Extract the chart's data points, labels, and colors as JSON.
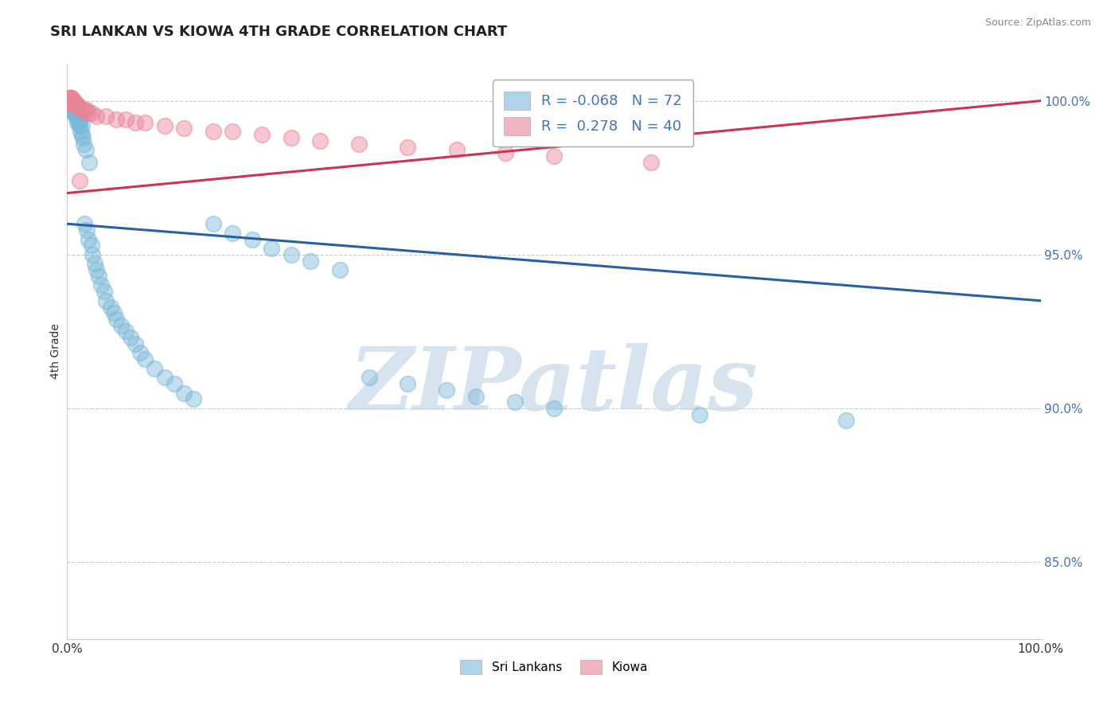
{
  "title": "SRI LANKAN VS KIOWA 4TH GRADE CORRELATION CHART",
  "source": "Source: ZipAtlas.com",
  "ylabel": "4th Grade",
  "legend_blue_label": "Sri Lankans",
  "legend_pink_label": "Kiowa",
  "R_blue": -0.068,
  "N_blue": 72,
  "R_pink": 0.278,
  "N_pink": 40,
  "xlim": [
    0.0,
    1.0
  ],
  "ylim": [
    0.825,
    1.012
  ],
  "yticks": [
    0.85,
    0.9,
    0.95,
    1.0
  ],
  "ytick_labels": [
    "85.0%",
    "90.0%",
    "95.0%",
    "100.0%"
  ],
  "xtick_labels": [
    "0.0%",
    "100.0%"
  ],
  "xticks": [
    0.0,
    1.0
  ],
  "blue_color": "#7ab8d9",
  "pink_color": "#e8849a",
  "blue_line_color": "#2a5fa5",
  "pink_line_color": "#cc3355",
  "grid_color": "#cccccc",
  "watermark": "ZIPatlas",
  "watermark_color": "#c8d8ea",
  "blue_line_y0": 0.96,
  "blue_line_y1": 0.935,
  "pink_line_y0": 0.97,
  "pink_line_y1": 1.0,
  "blue_scatter_x": [
    0.003,
    0.003,
    0.004,
    0.004,
    0.005,
    0.005,
    0.006,
    0.006,
    0.006,
    0.007,
    0.007,
    0.007,
    0.008,
    0.008,
    0.009,
    0.009,
    0.01,
    0.01,
    0.01,
    0.011,
    0.011,
    0.012,
    0.012,
    0.013,
    0.013,
    0.014,
    0.015,
    0.015,
    0.016,
    0.017,
    0.018,
    0.019,
    0.02,
    0.022,
    0.023,
    0.025,
    0.026,
    0.028,
    0.03,
    0.032,
    0.035,
    0.038,
    0.04,
    0.045,
    0.048,
    0.05,
    0.055,
    0.06,
    0.065,
    0.07,
    0.075,
    0.08,
    0.09,
    0.1,
    0.11,
    0.12,
    0.13,
    0.15,
    0.17,
    0.19,
    0.21,
    0.23,
    0.25,
    0.28,
    0.31,
    0.35,
    0.39,
    0.42,
    0.46,
    0.5,
    0.65,
    0.8
  ],
  "blue_scatter_y": [
    1.0,
    0.999,
    1.0,
    0.998,
    0.999,
    0.997,
    0.999,
    0.998,
    0.997,
    0.998,
    0.997,
    0.996,
    0.998,
    0.996,
    0.997,
    0.995,
    0.997,
    0.995,
    0.993,
    0.996,
    0.994,
    0.995,
    0.993,
    0.994,
    0.992,
    0.99,
    0.992,
    0.989,
    0.988,
    0.986,
    0.96,
    0.984,
    0.958,
    0.955,
    0.98,
    0.953,
    0.95,
    0.947,
    0.945,
    0.943,
    0.94,
    0.938,
    0.935,
    0.933,
    0.931,
    0.929,
    0.927,
    0.925,
    0.923,
    0.921,
    0.918,
    0.916,
    0.913,
    0.91,
    0.908,
    0.905,
    0.903,
    0.96,
    0.957,
    0.955,
    0.952,
    0.95,
    0.948,
    0.945,
    0.91,
    0.908,
    0.906,
    0.904,
    0.902,
    0.9,
    0.898,
    0.896
  ],
  "pink_scatter_x": [
    0.003,
    0.003,
    0.004,
    0.004,
    0.005,
    0.005,
    0.005,
    0.006,
    0.007,
    0.007,
    0.008,
    0.009,
    0.01,
    0.011,
    0.012,
    0.013,
    0.015,
    0.018,
    0.02,
    0.022,
    0.025,
    0.03,
    0.04,
    0.05,
    0.06,
    0.07,
    0.08,
    0.1,
    0.12,
    0.15,
    0.17,
    0.2,
    0.23,
    0.26,
    0.3,
    0.35,
    0.4,
    0.45,
    0.5,
    0.6
  ],
  "pink_scatter_y": [
    1.001,
    1.001,
    1.001,
    1.0,
    1.001,
    1.0,
    0.999,
    1.0,
    1.0,
    0.999,
    0.999,
    0.999,
    0.999,
    0.998,
    0.998,
    0.974,
    0.997,
    0.997,
    0.997,
    0.996,
    0.996,
    0.995,
    0.995,
    0.994,
    0.994,
    0.993,
    0.993,
    0.992,
    0.991,
    0.99,
    0.99,
    0.989,
    0.988,
    0.987,
    0.986,
    0.985,
    0.984,
    0.983,
    0.982,
    0.98
  ]
}
